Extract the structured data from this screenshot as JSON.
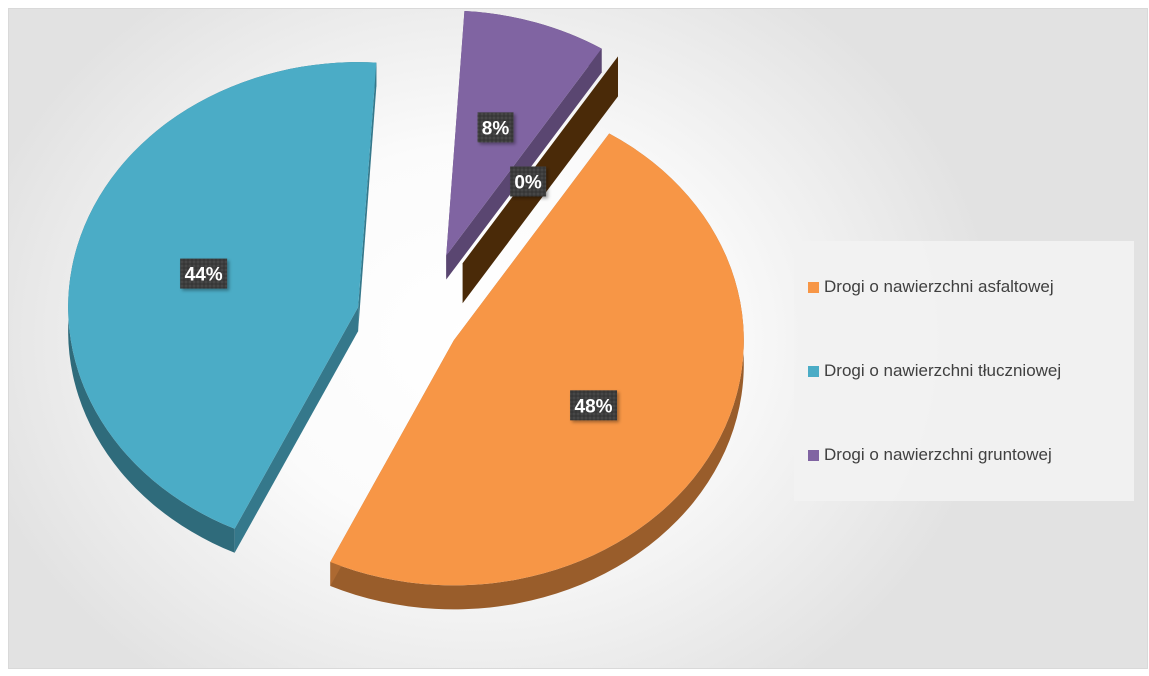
{
  "chart_data": {
    "type": "pie",
    "categories": [
      "Drogi o nawierzchni asfaltowej",
      "Drogi o nawierzchni tłuczniowej",
      "Drogi o nawierzchni gruntowej",
      ""
    ],
    "values": [
      48,
      44,
      8,
      0
    ],
    "data_labels": [
      "48%",
      "44%",
      "8%",
      "0%"
    ],
    "colors": [
      "#F79646",
      "#4BACC6",
      "#8064A2",
      "#4A2A08"
    ],
    "style": "3d-exploded",
    "legend_position": "right",
    "title": ""
  },
  "legend": {
    "items": [
      {
        "label": "Drogi o nawierzchni asfaltowej",
        "color": "#F79646"
      },
      {
        "label": "Drogi o nawierzchni tłuczniowej",
        "color": "#4BACC6"
      },
      {
        "label": "Drogi o nawierzchni gruntowej",
        "color": "#8064A2"
      }
    ]
  }
}
